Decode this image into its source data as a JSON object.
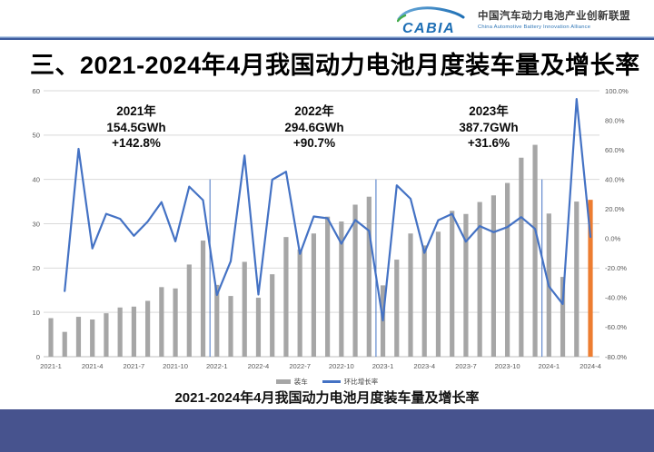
{
  "header": {
    "logo_text": "CABIA",
    "alliance_name_cn": "中国汽车动力电池产业创新联盟",
    "alliance_name_en": "China Automotive Battery Innovation Alliance"
  },
  "title": "三、2021-2024年4月我国动力电池月度装车量及增长率",
  "caption": "2021-2024年4月我国动力电池月度装车量及增长率",
  "legend": {
    "bar_label": "装车",
    "line_label": "环比增长率"
  },
  "annotations": [
    {
      "year": "2021年",
      "total": "154.5GWh",
      "yoy": "+142.8%"
    },
    {
      "year": "2022年",
      "total": "294.6GWh",
      "yoy": "+90.7%"
    },
    {
      "year": "2023年",
      "total": "387.7GWh",
      "yoy": "+31.6%"
    }
  ],
  "colors": {
    "bar": "#A6A6A6",
    "bar_highlight": "#ED7D31",
    "line": "#4472C4",
    "grid": "#D9D9D9",
    "axis_baseline": "#BFBFBF",
    "tick_text": "#595959",
    "footer": "#47538E",
    "logo_blue": "#1E6FB5",
    "logo_green": "#44AC4B"
  },
  "chart_data": {
    "type": "bar",
    "subtype": "combo bar+line, dual axis",
    "title": "2021-2024年4月我国动力电池月度装车量及增长率",
    "categories": [
      "2021-1",
      "2021-2",
      "2021-3",
      "2021-4",
      "2021-5",
      "2021-6",
      "2021-7",
      "2021-8",
      "2021-9",
      "2021-10",
      "2021-11",
      "2021-12",
      "2022-1",
      "2022-2",
      "2022-3",
      "2022-4",
      "2022-5",
      "2022-6",
      "2022-7",
      "2022-8",
      "2022-9",
      "2022-10",
      "2022-11",
      "2022-12",
      "2023-1",
      "2023-2",
      "2023-3",
      "2023-4",
      "2023-5",
      "2023-6",
      "2023-7",
      "2023-8",
      "2023-9",
      "2023-10",
      "2023-11",
      "2023-12",
      "2024-1",
      "2024-2",
      "2024-3",
      "2024-4"
    ],
    "series": [
      {
        "name": "装车",
        "type": "bar",
        "axis": "left",
        "unit": "GWh",
        "color": "#A6A6A6",
        "last_bar_color": "#ED7D31",
        "values": [
          8.7,
          5.6,
          9.0,
          8.4,
          9.8,
          11.1,
          11.3,
          12.6,
          15.7,
          15.4,
          20.8,
          26.2,
          16.2,
          13.7,
          21.4,
          13.3,
          18.6,
          27.0,
          24.2,
          27.8,
          31.6,
          30.5,
          34.3,
          36.1,
          16.1,
          21.9,
          27.8,
          25.1,
          28.2,
          32.9,
          32.2,
          34.9,
          36.4,
          39.2,
          44.9,
          47.8,
          32.3,
          18.0,
          35.0,
          35.4
        ]
      },
      {
        "name": "环比增长率",
        "type": "line",
        "axis": "right",
        "unit": "%",
        "color": "#4472C4",
        "values": [
          null,
          -35.6,
          60.7,
          -6.7,
          16.7,
          13.3,
          1.8,
          11.5,
          24.6,
          -1.9,
          35.1,
          26.0,
          -38.2,
          -15.4,
          56.2,
          -37.9,
          39.8,
          45.2,
          -10.4,
          14.9,
          13.7,
          -3.5,
          12.5,
          5.2,
          -55.4,
          36.0,
          26.9,
          -9.7,
          12.4,
          16.7,
          -2.1,
          8.4,
          4.3,
          7.7,
          14.5,
          6.5,
          -32.4,
          -44.3,
          94.4,
          1.1
        ]
      }
    ],
    "left_axis": {
      "min": 0,
      "max": 60,
      "step": 10,
      "tick_labels": [
        "0",
        "10",
        "20",
        "30",
        "40",
        "50",
        "60"
      ]
    },
    "right_axis": {
      "min": -80,
      "max": 100,
      "step": 20,
      "tick_labels": [
        "100.0%",
        "80.0%",
        "60.0%",
        "40.0%",
        "20.0%",
        "0.0%",
        "-20.0%",
        "-40.0%",
        "-60.0%",
        "-80.0%"
      ]
    },
    "x_tick_labels": [
      "2021-1",
      "2021-4",
      "2021-7",
      "2021-10",
      "2022-1",
      "2022-4",
      "2022-7",
      "2022-10",
      "2023-1",
      "2023-4",
      "2023-7",
      "2023-10",
      "2024-1",
      "2024-4"
    ],
    "x_tick_every": 3,
    "year_separators_after_index": [
      11,
      23,
      35
    ],
    "separator_top_value": 40,
    "grid": true,
    "legend_position": "bottom"
  }
}
